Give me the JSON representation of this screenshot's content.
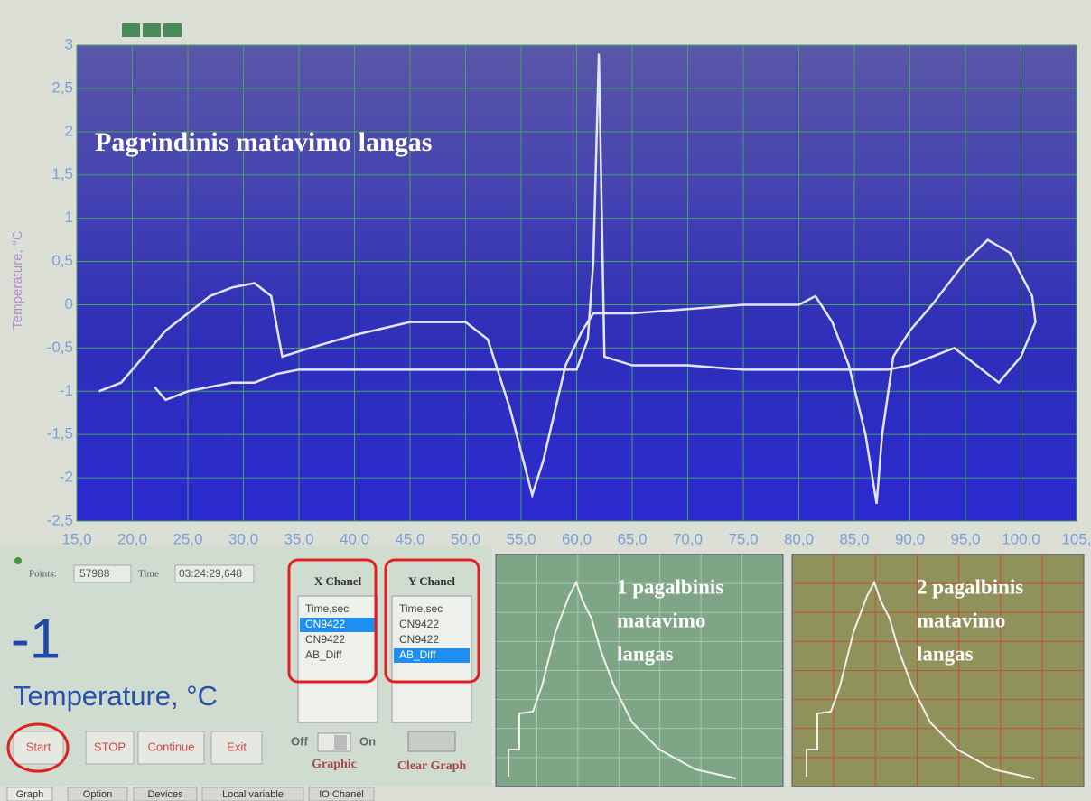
{
  "chart_data": {
    "type": "line",
    "title": "Pagrindinis matavimo langas",
    "y_label": "Temperature, °C",
    "xlim": [
      15,
      105
    ],
    "ylim": [
      -2.5,
      3
    ],
    "grid": true,
    "color": "#e4e6f8",
    "xticks": [
      {
        "value": 15,
        "label": "15,0"
      },
      {
        "value": 20,
        "label": "20,0"
      },
      {
        "value": 25,
        "label": "25,0"
      },
      {
        "value": 30,
        "label": "30,0"
      },
      {
        "value": 35,
        "label": "35,0"
      },
      {
        "value": 40,
        "label": "40,0"
      },
      {
        "value": 45,
        "label": "45,0"
      },
      {
        "value": 50,
        "label": "50,0"
      },
      {
        "value": 55,
        "label": "55,0"
      },
      {
        "value": 60,
        "label": "60,0"
      },
      {
        "value": 65,
        "label": "65,0"
      },
      {
        "value": 70,
        "label": "70,0"
      },
      {
        "value": 75,
        "label": "75,0"
      },
      {
        "value": 80,
        "label": "80,0"
      },
      {
        "value": 85,
        "label": "85,0"
      },
      {
        "value": 90,
        "label": "90,0"
      },
      {
        "value": 95,
        "label": "95,0"
      },
      {
        "value": 100,
        "label": "100,0"
      },
      {
        "value": 105,
        "label": "105,"
      }
    ],
    "yticks": [
      {
        "value": -2.5,
        "label": "-2,5"
      },
      -2,
      {
        "value": -1.5,
        "label": "-1,5"
      },
      -1,
      {
        "value": -0.5,
        "label": "-0,5"
      },
      0,
      {
        "value": 0.5,
        "label": "0,5"
      },
      1,
      {
        "value": 1.5,
        "label": "1,5"
      },
      2,
      {
        "value": 2.5,
        "label": "2,5"
      },
      3
    ],
    "x": [
      17,
      19,
      21,
      23,
      25,
      27,
      29,
      31,
      32.5,
      33.5,
      36,
      40,
      45,
      50,
      52,
      54,
      56,
      57,
      59,
      60.5,
      61.5,
      65,
      70,
      75,
      80,
      81.5,
      83,
      84.5,
      86,
      87,
      87.5,
      88.5,
      90,
      92,
      95,
      97,
      99,
      101,
      101.3,
      100,
      98,
      96,
      94,
      92,
      90,
      88,
      85,
      80,
      75,
      70,
      65,
      62.5,
      62,
      61.5,
      61,
      60,
      55,
      50,
      45,
      40,
      35,
      33,
      31,
      29,
      27,
      25,
      23,
      22
    ],
    "values": [
      -1,
      -0.9,
      -0.6,
      -0.3,
      -0.1,
      0.1,
      0.2,
      0.25,
      0.1,
      -0.6,
      -0.5,
      -0.35,
      -0.2,
      -0.2,
      -0.4,
      -1.2,
      -2.2,
      -1.8,
      -0.7,
      -0.3,
      -0.1,
      -0.1,
      -0.05,
      0,
      0,
      0.1,
      -0.2,
      -0.7,
      -1.5,
      -2.3,
      -1.5,
      -0.6,
      -0.3,
      0,
      0.5,
      0.75,
      0.6,
      0.1,
      -0.2,
      -0.6,
      -0.9,
      -0.7,
      -0.5,
      -0.6,
      -0.7,
      -0.75,
      -0.75,
      -0.75,
      -0.75,
      -0.7,
      -0.7,
      -0.6,
      2.9,
      0.5,
      -0.4,
      -0.75,
      -0.75,
      -0.75,
      -0.75,
      -0.75,
      -0.75,
      -0.8,
      -0.9,
      -0.9,
      -0.95,
      -1,
      -1.1,
      -0.95
    ]
  },
  "panel": {
    "points_label": "Points:",
    "points": "57988",
    "time_label": "Time",
    "time": "03:24:29,648",
    "reading": "-1",
    "unit": "Temperature, °C",
    "buttons": [
      "Start",
      "STOP",
      "Continue",
      "Exit"
    ],
    "x_channel": {
      "title": "X Chanel",
      "items": [
        "Time,sec",
        "CN9422",
        "CN9422",
        "AB_Diff"
      ],
      "selected": 1
    },
    "y_channel": {
      "title": "Y Chanel",
      "items": [
        "Time,sec",
        "CN9422",
        "CN9422",
        "AB_Diff"
      ],
      "selected": 3
    },
    "switch_off": "Off",
    "switch_on": "On",
    "switch_label": "Graphic",
    "clear": "Clear Graph",
    "tabs": [
      "Graph",
      "Option",
      "Devices",
      "Local variable",
      "IO Chanel"
    ]
  },
  "aux_1": {
    "lines": [
      "1 pagalbinis",
      "matavimo",
      "langas"
    ]
  },
  "aux_2": {
    "lines": [
      "2 pagalbinis",
      "matavimo",
      "langas"
    ]
  }
}
